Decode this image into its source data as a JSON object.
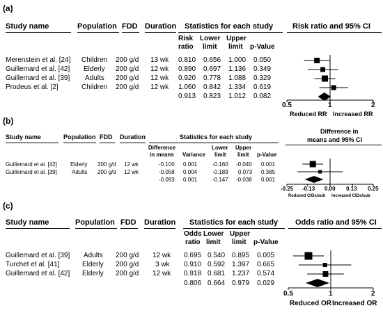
{
  "chart_data": [
    {
      "type": "forest",
      "panel_label": "(a)",
      "headers": {
        "study": "Study name",
        "population": "Population",
        "fdd": "FDD",
        "duration": "Duration",
        "stats": "Statistics for each study",
        "ci": "Risk ratio and 95% CI",
        "col1a": "Risk",
        "col1b": "ratio",
        "col2a": "Lower",
        "col2b": "limit",
        "col3a": "Upper",
        "col3b": "limit",
        "col4": "p-Value"
      },
      "rows": [
        {
          "study": "Merenstein et al. [24]",
          "population": "Children",
          "fdd": "200 g/d",
          "duration": "13 wk",
          "estimate": 0.81,
          "lower": 0.656,
          "upper": 1.0,
          "p": "0.050",
          "estimate_text": "0.810",
          "lower_text": "0.656",
          "upper_text": "1.000"
        },
        {
          "study": "Guillemard et al. [42]",
          "population": "Elderly",
          "fdd": "200 g/d",
          "duration": "12 wk",
          "estimate": 0.89,
          "lower": 0.697,
          "upper": 1.136,
          "p": "0.349",
          "estimate_text": "0.890",
          "lower_text": "0.697",
          "upper_text": "1.136"
        },
        {
          "study": "Guillemard et al. [39]",
          "population": "Adults",
          "fdd": "200 g/d",
          "duration": "12 wk",
          "estimate": 0.92,
          "lower": 0.778,
          "upper": 1.088,
          "p": "0.329",
          "estimate_text": "0.920",
          "lower_text": "0.778",
          "upper_text": "1.088"
        },
        {
          "study": "Prodeus et al. [2]",
          "population": "Children",
          "fdd": "200 g/d",
          "duration": "12 wk",
          "estimate": 1.06,
          "lower": 0.842,
          "upper": 1.334,
          "p": "0.619",
          "estimate_text": "1.060",
          "lower_text": "0.842",
          "upper_text": "1.334"
        }
      ],
      "pooled": {
        "estimate": 0.913,
        "lower": 0.823,
        "upper": 1.012,
        "p": "0.082",
        "estimate_text": "0.913",
        "lower_text": "0.823",
        "upper_text": "1.012"
      },
      "xscale": "log",
      "xlim": [
        0.5,
        2
      ],
      "ticks": [
        0.5,
        1,
        2
      ],
      "tick_labels": [
        "0.5",
        "1",
        "2"
      ],
      "reference": 1,
      "left_label": "Reduced RR",
      "right_label": "Increased RR"
    },
    {
      "type": "forest",
      "panel_label": "(b)",
      "headers": {
        "study": "Study name",
        "population": "Population",
        "fdd": "FDD",
        "duration": "Duration",
        "stats": "Statistics for each study",
        "ci1": "Difference in",
        "ci2": "means and 95% CI",
        "col1a": "Difference",
        "col1b": "in means",
        "col2": "Variance",
        "col3a": "Lower",
        "col3b": "limit",
        "col4a": "Upper",
        "col4b": "limit",
        "col5": "p-Value"
      },
      "rows": [
        {
          "study": "Guillemard et al. [42]",
          "population": "Elderly",
          "fdd": "200 g/d",
          "duration": "12 wk",
          "estimate": -0.1,
          "variance": "0.001",
          "lower": -0.16,
          "upper": -0.04,
          "p": "0.001",
          "estimate_text": "-0.100",
          "lower_text": "-0.160",
          "upper_text": "-0.040"
        },
        {
          "study": "Guillemard et al. [39]",
          "population": "Adults",
          "fdd": "200 g/d",
          "duration": "12 wk",
          "estimate": -0.058,
          "variance": "0.004",
          "lower": -0.189,
          "upper": 0.073,
          "p": "0.385",
          "estimate_text": "-0.058",
          "lower_text": "-0.189",
          "upper_text": "0.073"
        }
      ],
      "pooled": {
        "estimate": -0.093,
        "variance": "0.001",
        "lower": -0.147,
        "upper": -0.038,
        "p": "0.001",
        "estimate_text": "-0.093",
        "lower_text": "-0.147",
        "upper_text": "-0.038"
      },
      "xscale": "linear",
      "xlim": [
        -0.25,
        0.25
      ],
      "ticks": [
        -0.25,
        -0.13,
        0,
        0.13,
        0.25
      ],
      "tick_labels": [
        "-0.25",
        "-0.13",
        "0.00",
        "0.13",
        "0.25"
      ],
      "reference": 0,
      "left_label": "Reduced CIDs/sub",
      "right_label": "Increased CIDs/sub"
    },
    {
      "type": "forest",
      "panel_label": "(c)",
      "headers": {
        "study": "Study name",
        "population": "Population",
        "fdd": "FDD",
        "duration": "Duration",
        "stats": "Statistics for each study",
        "ci": "Odds ratio and 95% CI",
        "col1a": "Odds",
        "col1b": "ratio",
        "col2a": "Lower",
        "col2b": "limit",
        "col3a": "Upper",
        "col3b": "limit",
        "col4": "p-Value"
      },
      "rows": [
        {
          "study": "Guillemard et al. [39]",
          "population": "Adults",
          "fdd": "200 g/d",
          "duration": "12 wk",
          "estimate": 0.695,
          "lower": 0.54,
          "upper": 0.895,
          "p": "0.005",
          "estimate_text": "0.695",
          "lower_text": "0.540",
          "upper_text": "0.895"
        },
        {
          "study": "Turchet et al. [41]",
          "population": "Elderly",
          "fdd": "200 g/d",
          "duration": "3 wk",
          "estimate": 0.91,
          "lower": 0.592,
          "upper": 1.397,
          "p": "0.665",
          "estimate_text": "0.910",
          "lower_text": "0.592",
          "upper_text": "1.397"
        },
        {
          "study": "Guillemard et al. [42]",
          "population": "Elderly",
          "fdd": "200 g/d",
          "duration": "12 wk",
          "estimate": 0.918,
          "lower": 0.681,
          "upper": 1.237,
          "p": "0.574",
          "estimate_text": "0.918",
          "lower_text": "0.681",
          "upper_text": "1.237"
        }
      ],
      "pooled": {
        "estimate": 0.806,
        "lower": 0.664,
        "upper": 0.979,
        "p": "0.029",
        "estimate_text": "0.806",
        "lower_text": "0.664",
        "upper_text": "0.979"
      },
      "xscale": "log",
      "xlim": [
        0.5,
        2
      ],
      "ticks": [
        0.5,
        1,
        2
      ],
      "tick_labels": [
        "0.5",
        "1",
        "2"
      ],
      "reference": 1,
      "left_label": "Reduced OR",
      "right_label": "Increased OR"
    }
  ]
}
